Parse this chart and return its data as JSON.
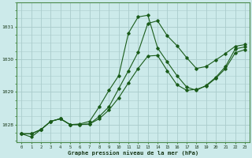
{
  "xlabel": "Graphe pression niveau de la mer (hPa)",
  "background_color": "#cceaea",
  "grid_color": "#aacccc",
  "line_color": "#1a5c1a",
  "ylim": [
    1027.45,
    1031.75
  ],
  "yticks": [
    1028,
    1029,
    1030,
    1031
  ],
  "series": [
    [
      1027.72,
      1027.72,
      1027.85,
      1028.1,
      1028.18,
      1028.0,
      1028.0,
      1028.02,
      1028.18,
      1028.45,
      1028.82,
      1029.28,
      1029.72,
      1030.1,
      1030.12,
      1029.65,
      1029.22,
      1029.05,
      1029.08,
      1029.18,
      1029.42,
      1029.72,
      1030.2,
      1030.3
    ],
    [
      1027.72,
      1027.62,
      1027.85,
      1028.1,
      1028.18,
      1028.0,
      1028.02,
      1028.1,
      1028.55,
      1029.05,
      1029.5,
      1030.8,
      1031.3,
      1031.35,
      1030.35,
      1029.92,
      1029.5,
      1029.15,
      1029.05,
      1029.2,
      1029.45,
      1029.78,
      1030.32,
      1030.38
    ],
    [
      1027.72,
      1027.72,
      1027.85,
      1028.1,
      1028.18,
      1028.0,
      1028.0,
      1028.02,
      1028.25,
      1028.55,
      1029.1,
      1029.65,
      1030.22,
      1031.1,
      1031.18,
      1030.72,
      1030.42,
      1030.05,
      1029.72,
      1029.78,
      1029.98,
      1030.18,
      1030.4,
      1030.45
    ]
  ]
}
